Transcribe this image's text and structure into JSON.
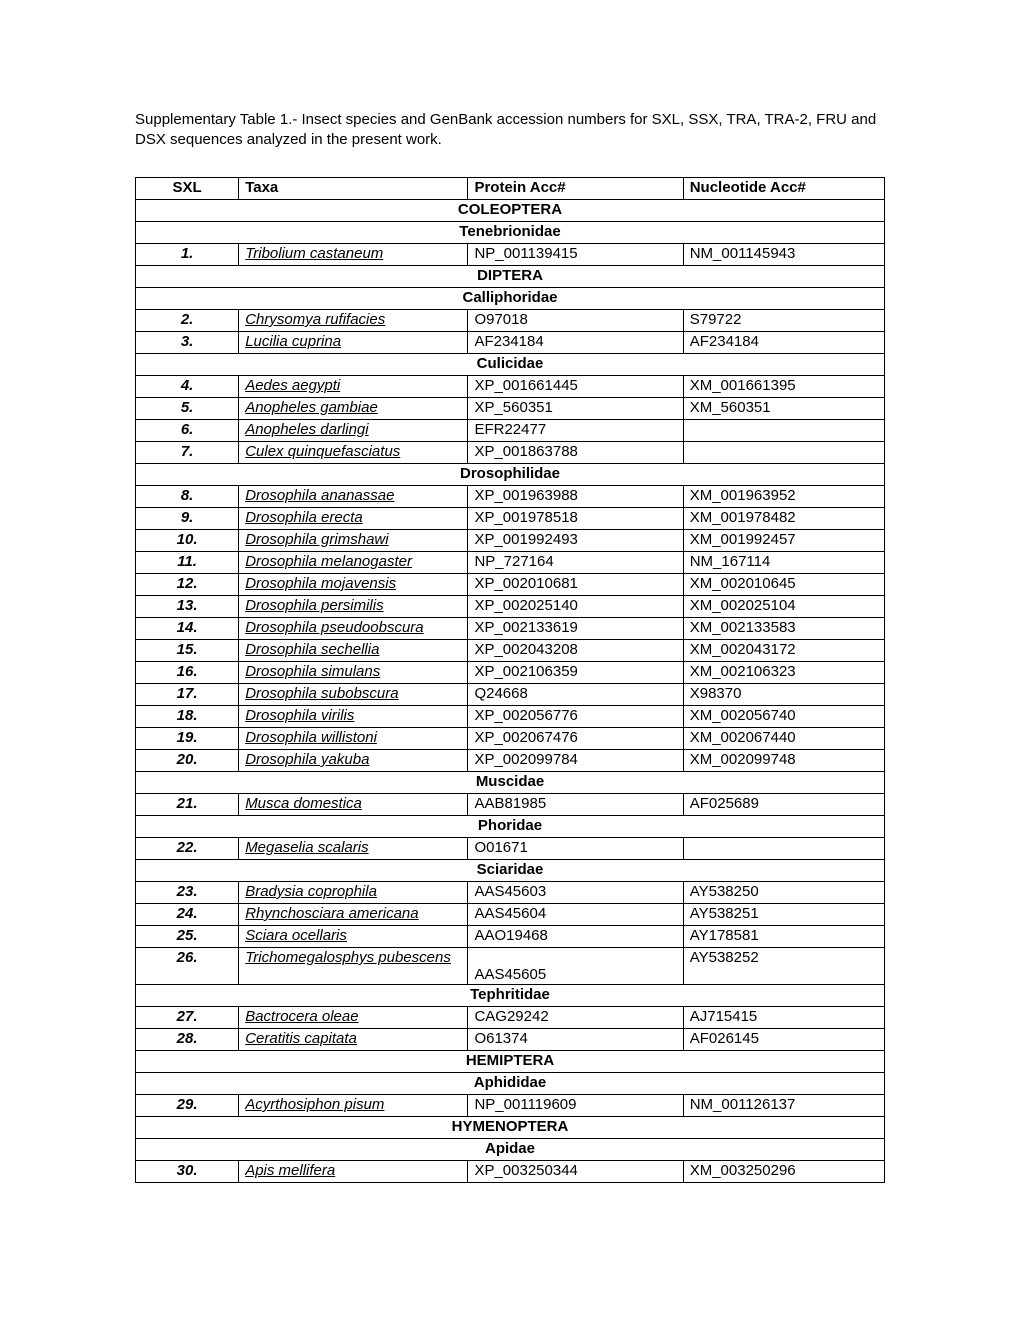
{
  "caption": "Supplementary Table 1.- Insect species and GenBank accession numbers for SXL, SSX, TRA, TRA-2, FRU and DSX sequences analyzed in the present work.",
  "headers": {
    "col1": "SXL",
    "col2": "Taxa",
    "col3": "Protein Acc#",
    "col4": "Nucleotide Acc#"
  },
  "rows": [
    {
      "type": "order",
      "label": "COLEOPTERA"
    },
    {
      "type": "family",
      "label": "Tenebrionidae"
    },
    {
      "type": "data",
      "num": "1.",
      "taxa": "Tribolium castaneum",
      "protein": "NP_001139415",
      "nucleotide": "NM_001145943"
    },
    {
      "type": "order",
      "label": "DIPTERA"
    },
    {
      "type": "family",
      "label": "Calliphoridae"
    },
    {
      "type": "data",
      "num": "2.",
      "taxa": "Chrysomya rufifacies",
      "protein": "O97018",
      "nucleotide": "S79722"
    },
    {
      "type": "data",
      "num": "3.",
      "taxa": "Lucilia cuprina",
      "protein": "AF234184",
      "nucleotide": "AF234184"
    },
    {
      "type": "family",
      "label": "Culicidae"
    },
    {
      "type": "data",
      "num": "4.",
      "taxa": "Aedes aegypti",
      "protein": "XP_001661445",
      "nucleotide": "XM_001661395"
    },
    {
      "type": "data",
      "num": "5.",
      "taxa": "Anopheles gambiae",
      "protein": "XP_560351",
      "nucleotide": "XM_560351"
    },
    {
      "type": "data",
      "num": "6.",
      "taxa": "Anopheles darlingi",
      "protein": "EFR22477",
      "nucleotide": ""
    },
    {
      "type": "data",
      "num": "7.",
      "taxa": "Culex quinquefasciatus",
      "protein": "XP_001863788",
      "nucleotide": ""
    },
    {
      "type": "family",
      "label": "Drosophilidae"
    },
    {
      "type": "data",
      "num": "8.",
      "taxa": "Drosophila ananassae",
      "protein": "XP_001963988",
      "nucleotide": "XM_001963952"
    },
    {
      "type": "data",
      "num": "9.",
      "taxa": "Drosophila erecta",
      "protein": "XP_001978518",
      "nucleotide": "XM_001978482"
    },
    {
      "type": "data",
      "num": "10.",
      "taxa": "Drosophila grimshawi",
      "protein": "XP_001992493",
      "nucleotide": "XM_001992457"
    },
    {
      "type": "data",
      "num": "11.",
      "taxa": "Drosophila melanogaster",
      "protein": "NP_727164",
      "nucleotide": "NM_167114"
    },
    {
      "type": "data",
      "num": "12.",
      "taxa": "Drosophila mojavensis",
      "protein": "XP_002010681",
      "nucleotide": "XM_002010645"
    },
    {
      "type": "data",
      "num": "13.",
      "taxa": "Drosophila persimilis",
      "protein": "XP_002025140",
      "nucleotide": "XM_002025104"
    },
    {
      "type": "data",
      "num": "14.",
      "taxa": "Drosophila pseudoobscura",
      "protein": "XP_002133619",
      "nucleotide": "XM_002133583"
    },
    {
      "type": "data",
      "num": "15.",
      "taxa": "Drosophila sechellia",
      "protein": "XP_002043208",
      "nucleotide": "XM_002043172"
    },
    {
      "type": "data",
      "num": "16.",
      "taxa": "Drosophila simulans",
      "protein": "XP_002106359",
      "nucleotide": "XM_002106323"
    },
    {
      "type": "data",
      "num": "17.",
      "taxa": "Drosophila subobscura",
      "protein": "Q24668",
      "nucleotide": "X98370"
    },
    {
      "type": "data",
      "num": "18.",
      "taxa": "Drosophila virilis",
      "protein": "XP_002056776",
      "nucleotide": "XM_002056740"
    },
    {
      "type": "data",
      "num": "19.",
      "taxa": "Drosophila willistoni",
      "protein": "XP_002067476",
      "nucleotide": "XM_002067440"
    },
    {
      "type": "data",
      "num": "20.",
      "taxa": "Drosophila yakuba",
      "protein": "XP_002099784",
      "nucleotide": "XM_002099748"
    },
    {
      "type": "family",
      "label": "Muscidae"
    },
    {
      "type": "data",
      "num": "21.",
      "taxa": "Musca domestica",
      "protein": "AAB81985",
      "nucleotide": "AF025689"
    },
    {
      "type": "family",
      "label": "Phoridae"
    },
    {
      "type": "data",
      "num": "22.",
      "taxa": "Megaselia scalaris",
      "protein": "O01671",
      "nucleotide": ""
    },
    {
      "type": "family",
      "label": "Sciaridae"
    },
    {
      "type": "data",
      "num": "23.",
      "taxa": "Bradysia coprophila",
      "protein": "AAS45603",
      "nucleotide": "AY538250"
    },
    {
      "type": "data",
      "num": "24.",
      "taxa": "Rhynchosciara americana",
      "protein": "AAS45604",
      "nucleotide": "AY538251"
    },
    {
      "type": "data",
      "num": "25.",
      "taxa": "Sciara ocellaris",
      "protein": "AAO19468",
      "nucleotide": "AY178581"
    },
    {
      "type": "data",
      "num": "26.",
      "taxa": "Trichomegalosphys pubescens",
      "protein": "AAS45605",
      "protein_offset": true,
      "nucleotide": "AY538252"
    },
    {
      "type": "family",
      "label": "Tephritidae"
    },
    {
      "type": "data",
      "num": "27.",
      "taxa": "Bactrocera oleae",
      "protein": "CAG29242",
      "nucleotide": "AJ715415"
    },
    {
      "type": "data",
      "num": "28.",
      "taxa": "Ceratitis capitata",
      "protein": "O61374",
      "nucleotide": "AF026145"
    },
    {
      "type": "order",
      "label": "HEMIPTERA"
    },
    {
      "type": "family",
      "label": "Aphididae"
    },
    {
      "type": "data",
      "num": "29.",
      "taxa": "Acyrthosiphon pisum",
      "protein": "NP_001119609",
      "nucleotide": "NM_001126137"
    },
    {
      "type": "order",
      "label": "HYMENOPTERA"
    },
    {
      "type": "family",
      "label": "Apidae"
    },
    {
      "type": "data",
      "num": "30.",
      "taxa": "Apis mellifera",
      "protein": "XP_003250344",
      "nucleotide": "XM_003250296"
    }
  ]
}
